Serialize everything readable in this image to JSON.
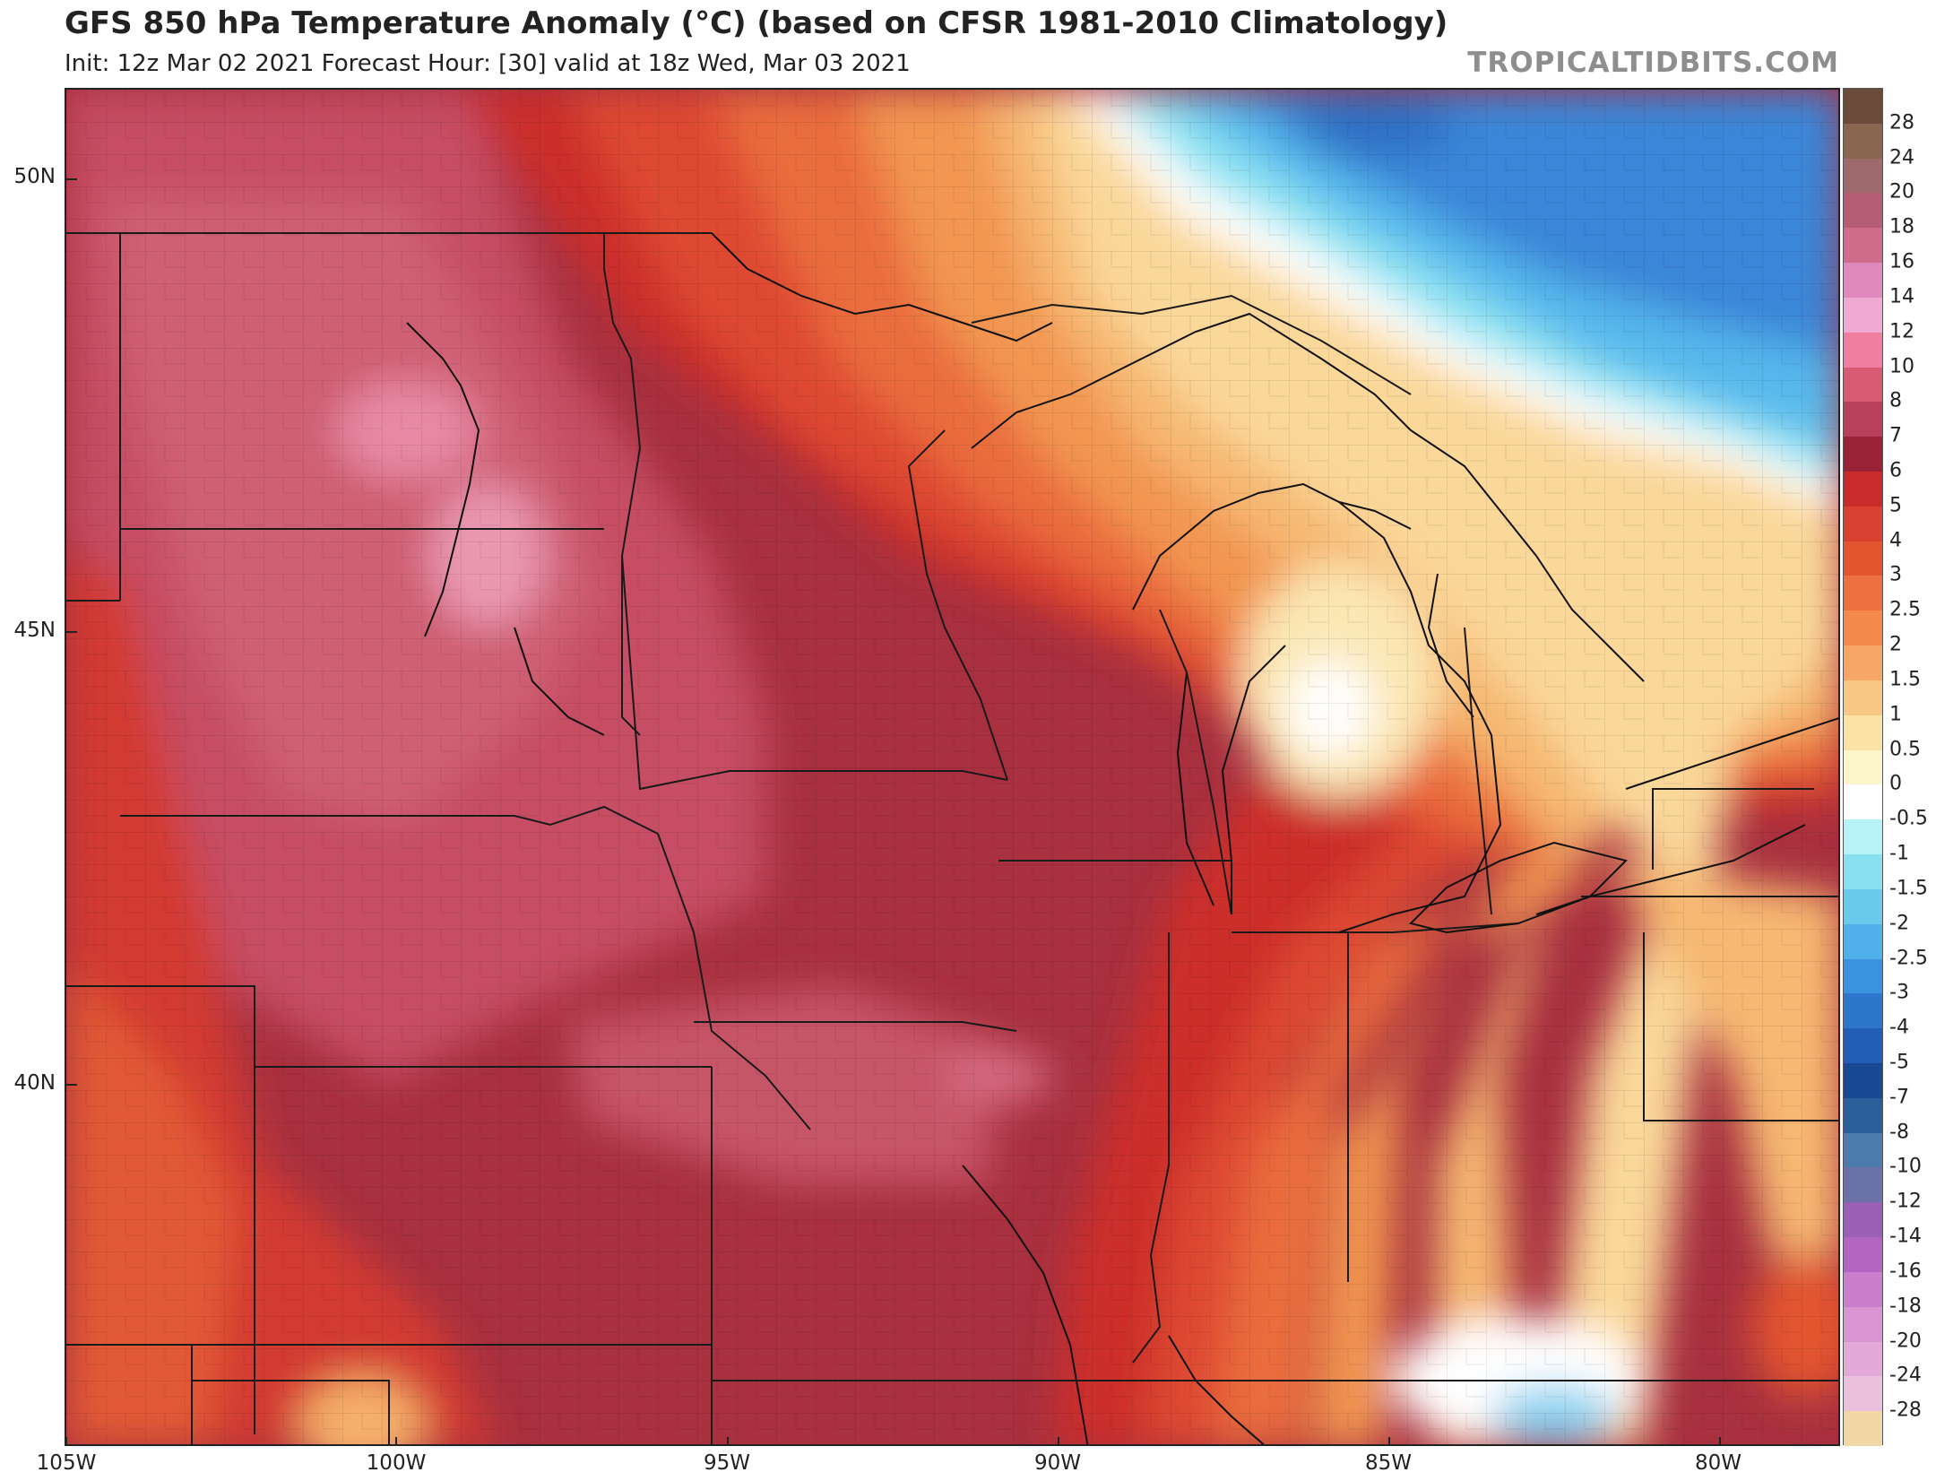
{
  "header": {
    "title": "GFS 850 hPa Temperature Anomaly (°C) (based on CFSR 1981-2010 Climatology)",
    "subtitle": "Init: 12z Mar 02 2021   Forecast Hour: [30]   valid at 18z Wed, Mar 03 2021",
    "brand": "TROPICALTIDBITS.COM"
  },
  "map": {
    "variable": "850 hPa Temperature Anomaly",
    "units": "°C",
    "lat_ticks": [
      "50N",
      "45N",
      "40N"
    ],
    "lon_ticks": [
      "105W",
      "100W",
      "95W",
      "90W",
      "85W",
      "80W"
    ]
  },
  "colorbar": {
    "labels": [
      "28",
      "24",
      "20",
      "18",
      "16",
      "14",
      "12",
      "10",
      "8",
      "7",
      "6",
      "5",
      "4",
      "3",
      "2.5",
      "2",
      "1.5",
      "1",
      "0.5",
      "0",
      "-0.5",
      "-1",
      "-1.5",
      "-2",
      "-2.5",
      "-3",
      "-4",
      "-5",
      "-7",
      "-8",
      "-10",
      "-12",
      "-14",
      "-16",
      "-18",
      "-20",
      "-24",
      "-28"
    ],
    "colors": [
      "#6b4a3a",
      "#8a6650",
      "#9e6a6e",
      "#b45d75",
      "#cf6c8c",
      "#e089bd",
      "#efa9d3",
      "#f07ea1",
      "#d95a73",
      "#b9405a",
      "#9a2236",
      "#c92a2a",
      "#d84030",
      "#e2552f",
      "#ec7040",
      "#f38a4c",
      "#f6a765",
      "#f8c784",
      "#fbe2a5",
      "#fdf6cb",
      "#ffffff",
      "#b6f2f6",
      "#88e0f0",
      "#6acaee",
      "#4fb0ea",
      "#3b92de",
      "#2e76cc",
      "#225eb5",
      "#1a4994",
      "#2b5f9a",
      "#4c7bae",
      "#6a72a8",
      "#9b5fb7",
      "#b265c2",
      "#c97fcd",
      "#d995d3",
      "#e3a9d8",
      "#ebc0dc",
      "#f1d8a6"
    ]
  }
}
